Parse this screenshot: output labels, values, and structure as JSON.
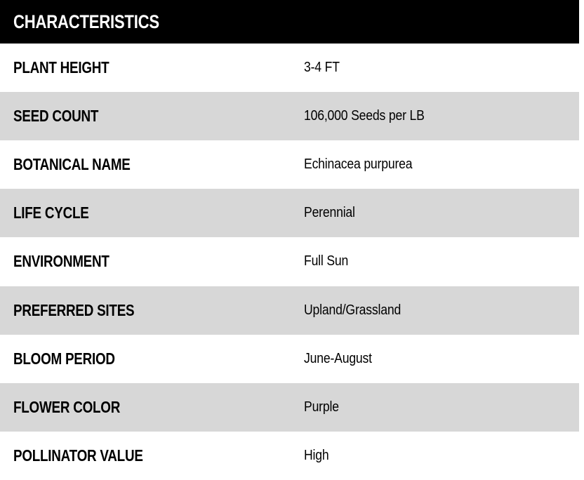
{
  "section": {
    "title": "CHARACTERISTICS"
  },
  "table": {
    "rows": [
      {
        "label": "PLANT HEIGHT",
        "value": "3-4 FT"
      },
      {
        "label": "SEED COUNT",
        "value": "106,000 Seeds per LB"
      },
      {
        "label": "BOTANICAL NAME",
        "value": "Echinacea purpurea"
      },
      {
        "label": "LIFE CYCLE",
        "value": "Perennial"
      },
      {
        "label": "ENVIRONMENT",
        "value": "Full Sun"
      },
      {
        "label": "PREFERRED SITES",
        "value": "Upland/Grassland"
      },
      {
        "label": "BLOOM PERIOD",
        "value": "June-August"
      },
      {
        "label": "FLOWER COLOR",
        "value": "Purple"
      },
      {
        "label": "POLLINATOR VALUE",
        "value": "High"
      }
    ]
  },
  "colors": {
    "header_bg": "#000000",
    "header_text": "#ffffff",
    "row_bg": "#ffffff",
    "row_alt_bg": "#d7d7d7",
    "text": "#000000"
  }
}
